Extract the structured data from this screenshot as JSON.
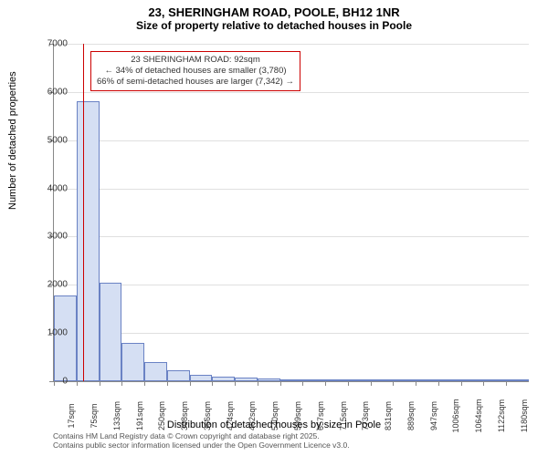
{
  "title": {
    "line1": "23, SHERINGHAM ROAD, POOLE, BH12 1NR",
    "line2": "Size of property relative to detached houses in Poole"
  },
  "chart": {
    "type": "histogram",
    "background_color": "#ffffff",
    "grid_color": "#e0e0e0",
    "axis_color": "#888888",
    "bar_fill": "#d5dff3",
    "bar_border": "#6a82c4",
    "marker_color": "#cc0000",
    "ylim": [
      0,
      7000
    ],
    "ytick_step": 1000,
    "ylabel": "Number of detached properties",
    "xlabel": "Distribution of detached houses by size in Poole",
    "label_fontsize": 11,
    "tick_fontsize": 10,
    "categories": [
      "17sqm",
      "75sqm",
      "133sqm",
      "191sqm",
      "250sqm",
      "308sqm",
      "366sqm",
      "424sqm",
      "482sqm",
      "540sqm",
      "599sqm",
      "657sqm",
      "715sqm",
      "773sqm",
      "831sqm",
      "889sqm",
      "947sqm",
      "1006sqm",
      "1064sqm",
      "1122sqm",
      "1180sqm"
    ],
    "values": [
      1780,
      5800,
      2050,
      800,
      400,
      220,
      130,
      90,
      70,
      60,
      40,
      30,
      20,
      15,
      10,
      10,
      8,
      5,
      5,
      3,
      2
    ],
    "marker_x": 92,
    "x_start": 17,
    "x_step": 58,
    "annotation": {
      "line1": "23 SHERINGHAM ROAD: 92sqm",
      "line2": "← 34% of detached houses are smaller (3,780)",
      "line3": "66% of semi-detached houses are larger (7,342) →"
    }
  },
  "footer": {
    "line1": "Contains HM Land Registry data © Crown copyright and database right 2025.",
    "line2": "Contains public sector information licensed under the Open Government Licence v3.0."
  }
}
